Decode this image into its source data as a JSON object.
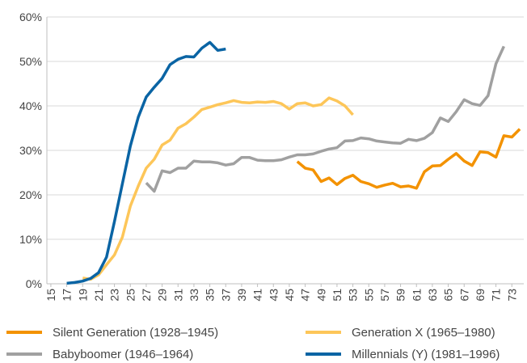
{
  "chart_data": {
    "type": "line",
    "x": [
      15,
      16,
      17,
      18,
      19,
      20,
      21,
      22,
      23,
      24,
      25,
      26,
      27,
      28,
      29,
      30,
      31,
      32,
      33,
      34,
      35,
      36,
      37,
      38,
      39,
      40,
      41,
      42,
      43,
      44,
      45,
      46,
      47,
      48,
      49,
      50,
      51,
      52,
      53,
      54,
      55,
      56,
      57,
      58,
      59,
      60,
      61,
      62,
      63,
      64,
      65,
      66,
      67,
      68,
      69,
      70,
      71,
      72,
      73,
      74
    ],
    "xlim": [
      14.5,
      74.5
    ],
    "xticks": [
      15,
      17,
      19,
      21,
      23,
      25,
      27,
      29,
      31,
      33,
      35,
      37,
      39,
      41,
      43,
      45,
      47,
      49,
      51,
      53,
      55,
      57,
      59,
      61,
      63,
      65,
      67,
      69,
      71,
      73
    ],
    "ylim": [
      0,
      60
    ],
    "yticks": [
      {
        "value": 0,
        "label": "0%"
      },
      {
        "value": 10,
        "label": "10%"
      },
      {
        "value": 20,
        "label": "20%"
      },
      {
        "value": 30,
        "label": "30%"
      },
      {
        "value": 40,
        "label": "40%"
      },
      {
        "value": 50,
        "label": "50%"
      },
      {
        "value": 60,
        "label": "60%"
      }
    ],
    "grid": true,
    "legend": "bottom",
    "series": [
      {
        "name": "Silent Generation (1928–1945)",
        "color": "#f39200",
        "values": [
          null,
          null,
          null,
          null,
          null,
          null,
          null,
          null,
          null,
          null,
          null,
          null,
          null,
          null,
          null,
          null,
          null,
          null,
          null,
          null,
          null,
          null,
          null,
          null,
          null,
          null,
          null,
          null,
          null,
          null,
          null,
          27.5,
          26,
          25.6,
          23,
          23.8,
          22.3,
          23.7,
          24.4,
          23,
          22.5,
          21.7,
          22.2,
          22.6,
          21.8,
          22,
          21.5,
          25.2,
          26.5,
          26.6,
          28,
          29.3,
          27.6,
          26.6,
          29.7,
          29.5,
          28.5,
          33.3,
          33,
          34.8
        ]
      },
      {
        "name": "Generation X (1965–1980)",
        "color": "#fdc659",
        "values": [
          null,
          null,
          null,
          null,
          1.3,
          1,
          2,
          4.3,
          6.5,
          10.5,
          17.5,
          22,
          26,
          28,
          31.2,
          32.3,
          35,
          36,
          37.5,
          39.2,
          39.7,
          40.3,
          40.7,
          41.2,
          40.8,
          40.7,
          40.9,
          40.8,
          41,
          40.5,
          39.3,
          40.5,
          40.7,
          40,
          40.3,
          41.8,
          41.1,
          40,
          38,
          null,
          null,
          null,
          null,
          null,
          null,
          null,
          null,
          null,
          null,
          null,
          null,
          null,
          null,
          null,
          null,
          null,
          null,
          null,
          null,
          null
        ]
      },
      {
        "name": "Babyboomer (1946–1964)",
        "color": "#a0a0a0",
        "values": [
          null,
          null,
          null,
          null,
          null,
          null,
          null,
          null,
          null,
          null,
          null,
          null,
          22.7,
          20.8,
          25.4,
          25,
          26,
          26,
          27.6,
          27.4,
          27.4,
          27.2,
          26.7,
          27,
          28.4,
          28.4,
          27.8,
          27.7,
          27.7,
          27.9,
          28.5,
          29,
          29,
          29.2,
          29.8,
          30.3,
          30.6,
          32.1,
          32.2,
          32.8,
          32.6,
          32.1,
          31.9,
          31.7,
          31.6,
          32.5,
          32.2,
          32.7,
          34,
          37.3,
          36.5,
          38.7,
          41.4,
          40.5,
          40.1,
          42.3,
          49.5,
          53.4,
          null,
          null
        ]
      },
      {
        "name": "Millennials (Y) (1981–1996)",
        "color": "#0a64a4",
        "values": [
          null,
          null,
          0.1,
          0.3,
          0.6,
          1.2,
          2.5,
          6,
          14,
          22.5,
          31,
          37.5,
          42,
          44.2,
          46.2,
          49.3,
          50.5,
          51.1,
          51,
          53,
          54.3,
          52.5,
          52.8,
          null,
          null,
          null,
          null,
          null,
          null,
          null,
          null,
          null,
          null,
          null,
          null,
          null,
          null,
          null,
          null,
          null,
          null,
          null,
          null,
          null,
          null,
          null,
          null,
          null,
          null,
          null,
          null,
          null,
          null,
          null,
          null,
          null,
          null,
          null,
          null,
          null
        ]
      }
    ]
  }
}
